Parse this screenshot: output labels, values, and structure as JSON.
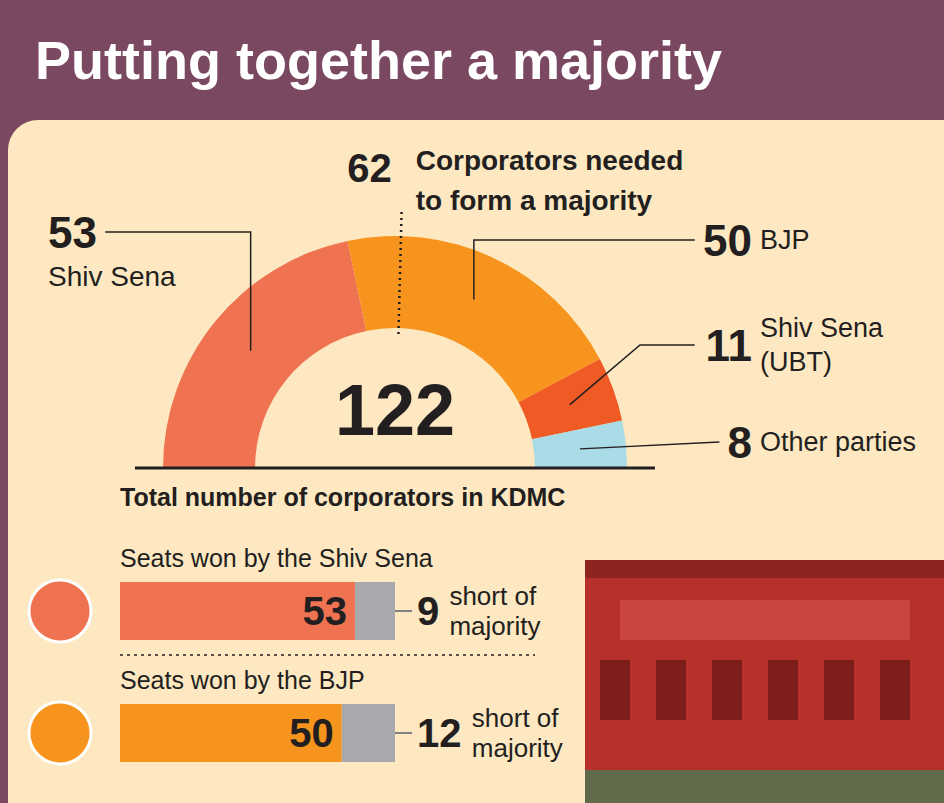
{
  "title": "Putting together a majority",
  "chart_data": [
    {
      "type": "pie",
      "categories": [
        "Shiv Sena",
        "BJP",
        "Shiv Sena (UBT)",
        "Other parties"
      ],
      "values": [
        53,
        50,
        11,
        8
      ],
      "colors": [
        "#ef7350",
        "#f7941d",
        "#f05a24",
        "#a9dce6"
      ],
      "total": 122,
      "total_label": "Total number of corporators in KDMC",
      "majority": 62,
      "majority_label": "Corporators needed to form a majority",
      "data_labels": true
    },
    {
      "type": "bar",
      "orientation": "horizontal",
      "stacked": true,
      "categories": [
        "Seats won by the Shiv Sena",
        "Seats won by the BJP"
      ],
      "series": [
        {
          "colors": [
            "#ef7350",
            "#f7941d"
          ],
          "values": [
            53,
            50
          ]
        },
        {
          "color": "#a7a9ac",
          "values": [
            9,
            12
          ],
          "label": "short of majority"
        }
      ],
      "xlim": [
        0,
        62
      ],
      "tick_labels": false,
      "data_labels": true
    }
  ]
}
